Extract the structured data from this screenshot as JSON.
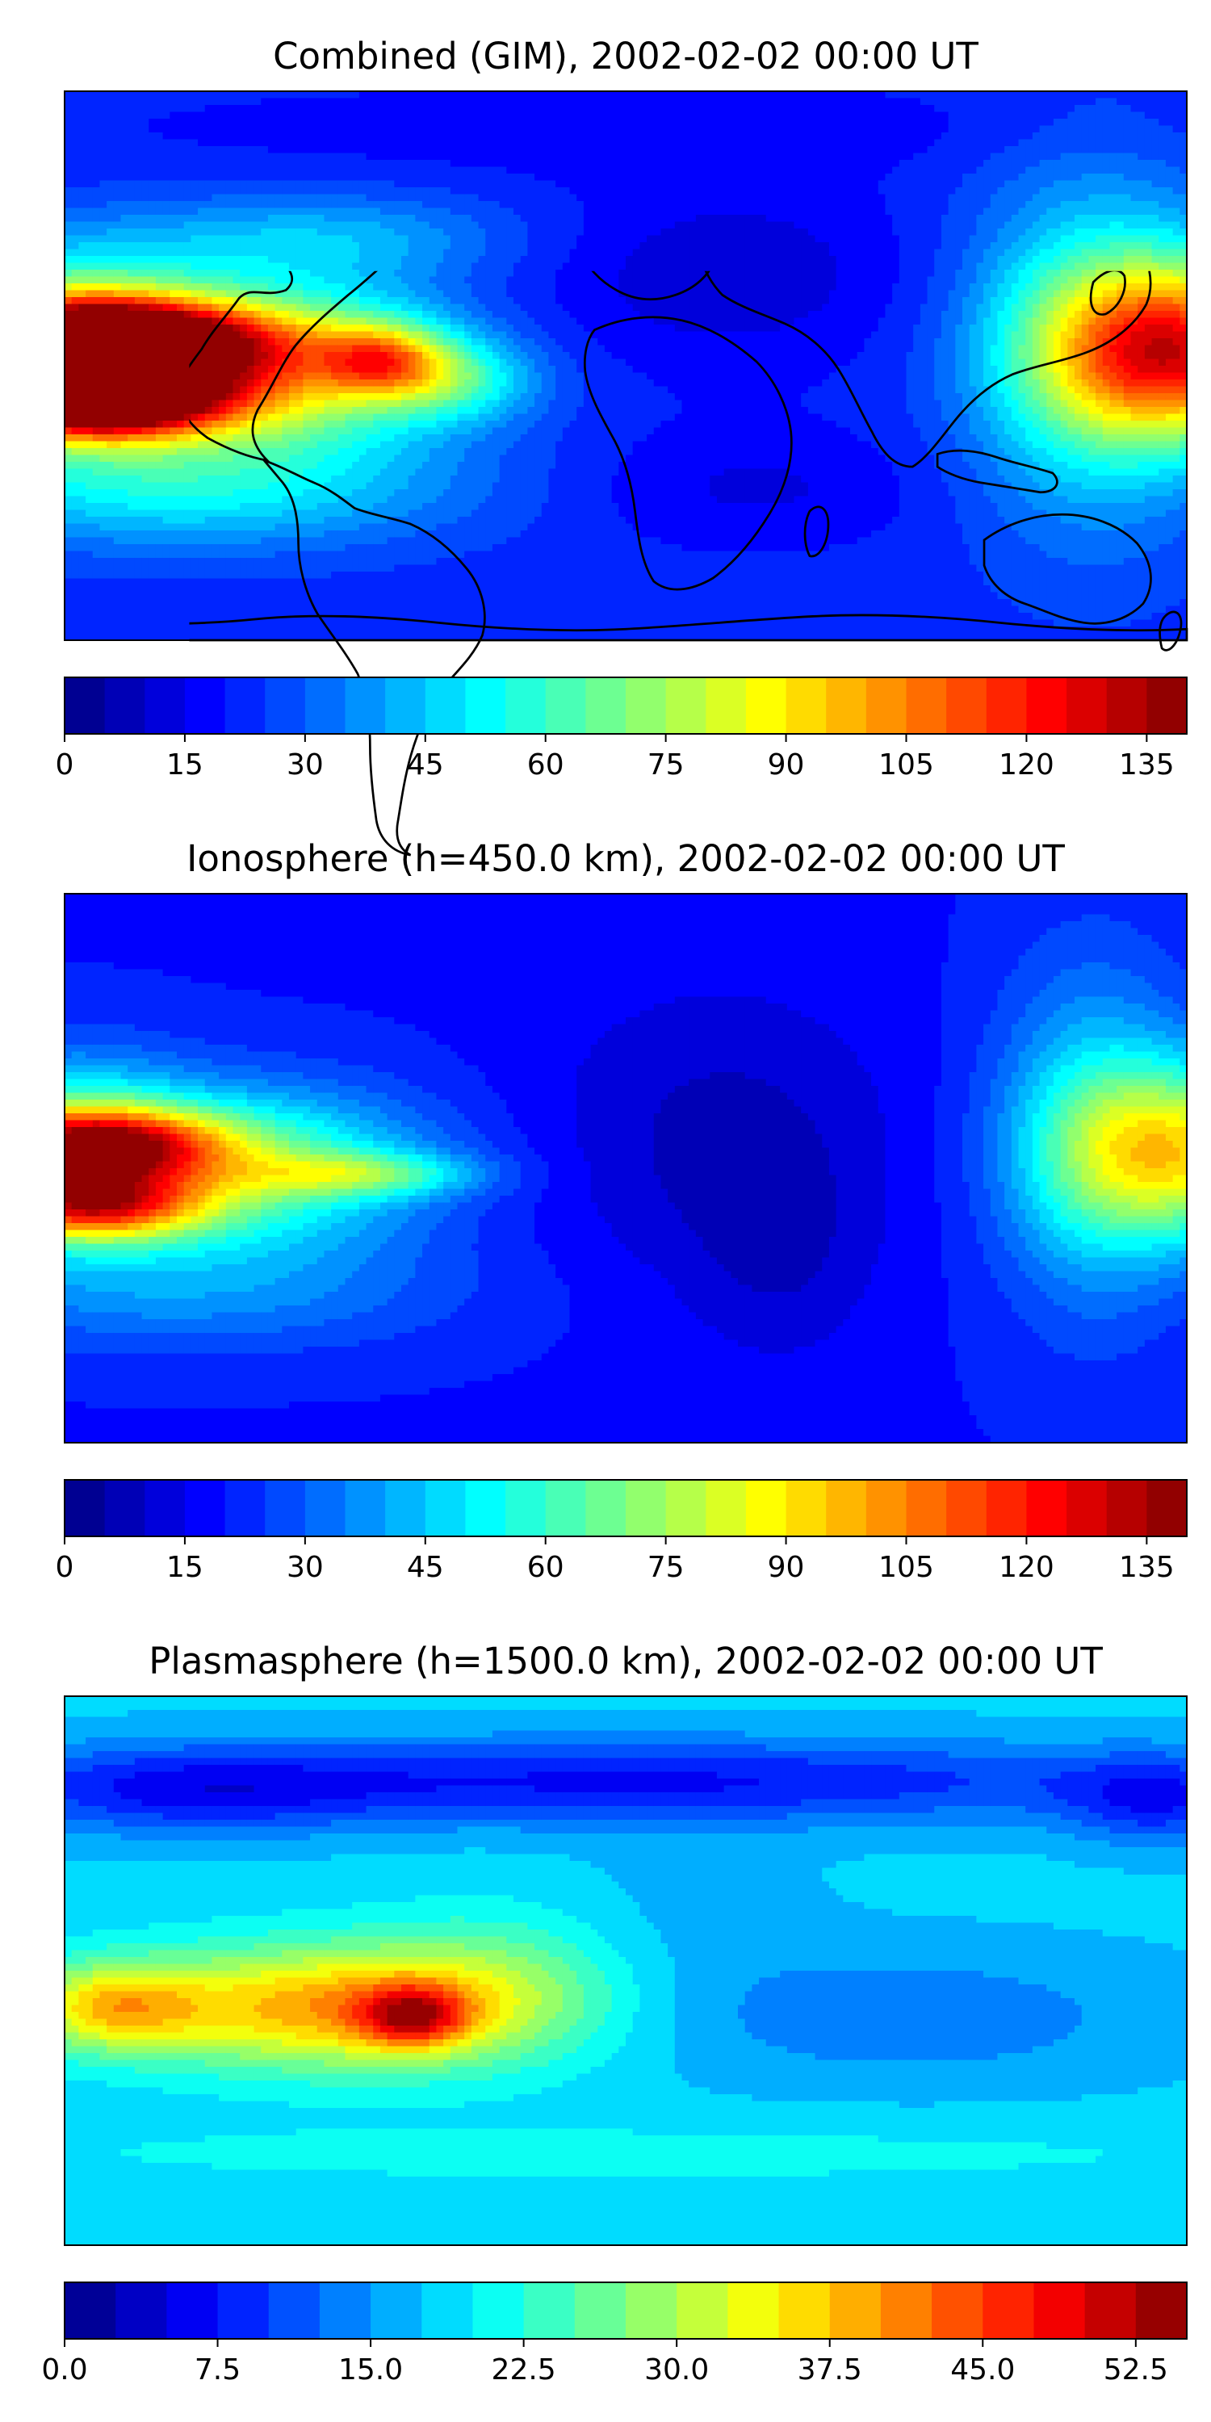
{
  "panels": [
    {
      "title": "Combined (GIM), 2002-02-02 00:00 UT",
      "colorbar": {
        "min": 0,
        "max": 140,
        "levels": 28,
        "ticks": [
          "0",
          "15",
          "30",
          "45",
          "60",
          "75",
          "90",
          "105",
          "120",
          "135"
        ],
        "tick_values": [
          0,
          15,
          30,
          45,
          60,
          75,
          90,
          105,
          120,
          135
        ]
      },
      "field": {
        "base": 0.16,
        "blobs": [
          {
            "lon": -165,
            "lat": 8,
            "slon": 32,
            "slat": 9,
            "amp": 0.74
          },
          {
            "lon": -170,
            "lat": -12,
            "slon": 28,
            "slat": 8,
            "amp": 0.72
          },
          {
            "lon": -115,
            "lat": 0,
            "slon": 40,
            "slat": 18,
            "amp": 0.5
          },
          {
            "lon": -78,
            "lat": 2,
            "slon": 14,
            "slat": 8,
            "amp": 0.32
          },
          {
            "lon": -55,
            "lat": -5,
            "slon": 18,
            "slat": 9,
            "amp": 0.18
          },
          {
            "lon": 180,
            "lat": 5,
            "slon": 30,
            "slat": 20,
            "amp": 0.62
          },
          {
            "lon": -180,
            "lat": 5,
            "slon": 30,
            "slat": 20,
            "amp": 0.5
          },
          {
            "lon": 150,
            "lat": 5,
            "slon": 28,
            "slat": 40,
            "amp": 0.25
          },
          {
            "lon": -140,
            "lat": -40,
            "slon": 60,
            "slat": 14,
            "amp": 0.2
          },
          {
            "lon": -100,
            "lat": 42,
            "slon": 45,
            "slat": 10,
            "amp": 0.14
          },
          {
            "lon": 30,
            "lat": 30,
            "slon": 45,
            "slat": 22,
            "amp": -0.08
          },
          {
            "lon": 40,
            "lat": -40,
            "slon": 40,
            "slat": 14,
            "amp": -0.06
          },
          {
            "lon": 0,
            "lat": 78,
            "slon": 120,
            "slat": 10,
            "amp": -0.04
          }
        ]
      }
    },
    {
      "title": "Ionosphere  (h=450.0 km), 2002-02-02 00:00 UT",
      "colorbar": {
        "min": 0,
        "max": 140,
        "levels": 28,
        "ticks": [
          "0",
          "15",
          "30",
          "45",
          "60",
          "75",
          "90",
          "105",
          "120",
          "135"
        ],
        "tick_values": [
          0,
          15,
          30,
          45,
          60,
          75,
          90,
          105,
          120,
          135
        ]
      },
      "field": {
        "base": 0.14,
        "blobs": [
          {
            "lon": -168,
            "lat": 8,
            "slon": 28,
            "slat": 8,
            "amp": 0.5
          },
          {
            "lon": -172,
            "lat": -12,
            "slon": 26,
            "slat": 8,
            "amp": 0.48
          },
          {
            "lon": -120,
            "lat": 0,
            "slon": 40,
            "slat": 18,
            "amp": 0.32
          },
          {
            "lon": -85,
            "lat": -2,
            "slon": 26,
            "slat": 5,
            "amp": 0.22
          },
          {
            "lon": 180,
            "lat": 5,
            "slon": 28,
            "slat": 20,
            "amp": 0.45
          },
          {
            "lon": -180,
            "lat": 5,
            "slon": 28,
            "slat": 20,
            "amp": 0.35
          },
          {
            "lon": 150,
            "lat": 10,
            "slon": 22,
            "slat": 40,
            "amp": 0.2
          },
          {
            "lon": -140,
            "lat": -40,
            "slon": 60,
            "slat": 14,
            "amp": 0.12
          },
          {
            "lon": 30,
            "lat": 10,
            "slon": 40,
            "slat": 35,
            "amp": -0.08
          },
          {
            "lon": 50,
            "lat": -30,
            "slon": 20,
            "slat": 25,
            "amp": -0.05
          }
        ]
      }
    },
    {
      "title": "Plasmasphere (h=1500.0 km), 2002-02-02 00:00 UT",
      "colorbar": {
        "min": 0,
        "max": 55,
        "levels": 22,
        "ticks": [
          "0.0",
          "7.5",
          "15.0",
          "22.5",
          "30.0",
          "37.5",
          "45.0",
          "52.5"
        ],
        "tick_values": [
          0,
          7.5,
          15,
          22.5,
          30,
          37.5,
          45,
          52.5
        ]
      },
      "field": {
        "base": 0.33,
        "blobs": [
          {
            "lon": -95,
            "lat": -12,
            "slon": 45,
            "slat": 14,
            "amp": 0.38
          },
          {
            "lon": -68,
            "lat": -15,
            "slon": 12,
            "slat": 7,
            "amp": 0.32
          },
          {
            "lon": -165,
            "lat": -12,
            "slon": 20,
            "slat": 10,
            "amp": 0.28
          },
          {
            "lon": -40,
            "lat": -5,
            "slon": 30,
            "slat": 18,
            "amp": 0.12
          },
          {
            "lon": 0,
            "lat": 62,
            "slon": 140,
            "slat": 10,
            "amp": -0.2
          },
          {
            "lon": -140,
            "lat": 58,
            "slon": 40,
            "slat": 10,
            "amp": -0.12
          },
          {
            "lon": 170,
            "lat": 55,
            "slon": 20,
            "slat": 10,
            "amp": -0.14
          },
          {
            "lon": 90,
            "lat": -15,
            "slon": 60,
            "slat": 16,
            "amp": -0.09
          },
          {
            "lon": 20,
            "lat": 20,
            "slon": 30,
            "slat": 20,
            "amp": -0.03
          },
          {
            "lon": 0,
            "lat": -60,
            "slon": 180,
            "slat": 8,
            "amp": 0.05
          }
        ]
      }
    }
  ]
}
